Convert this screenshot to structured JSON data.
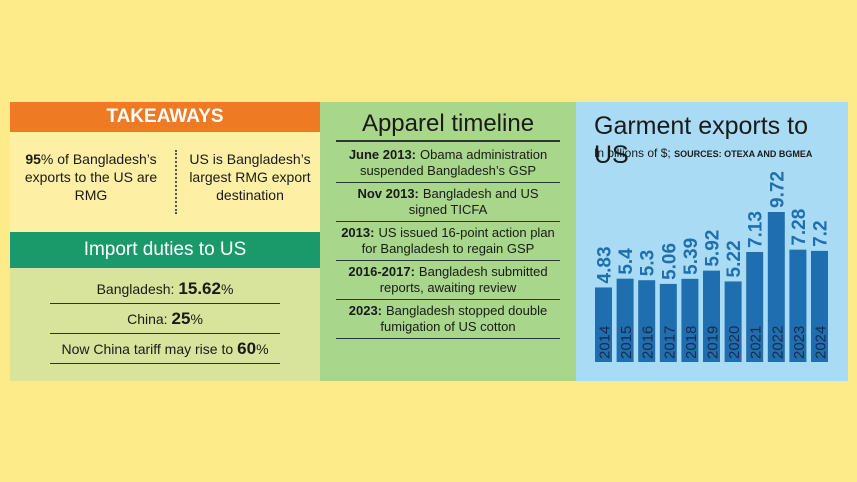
{
  "takeaways": {
    "title": "TAKEAWAYS",
    "items": [
      {
        "bold": "95",
        "text": "% of Bangladesh’s exports to the US are RMG"
      },
      {
        "text": "US is Bangladesh’s largest RMG export destination"
      }
    ]
  },
  "import_duties": {
    "title": "Import duties to US",
    "rows": [
      {
        "label": "Bangladesh:",
        "value": "15.62",
        "unit": "%"
      },
      {
        "label": "China:",
        "value": "25",
        "unit": "%"
      },
      {
        "label": "Now China tariff may rise to",
        "value": "60",
        "unit": "%"
      }
    ]
  },
  "timeline": {
    "title": "Apparel timeline",
    "items": [
      {
        "date": "June 2013:",
        "text": "Obama administration suspended Bangladesh’s GSP"
      },
      {
        "date": "Nov 2013:",
        "text": "Bangladesh and US signed TICFA"
      },
      {
        "date": "2013:",
        "text": "US issued 16-point action plan for Bangladesh to regain GSP"
      },
      {
        "date": "2016-2017:",
        "text": "Bangladesh submitted reports, awaiting review"
      },
      {
        "date": "2023:",
        "text": "Bangladesh stopped double fumigation of US cotton"
      }
    ]
  },
  "chart_data": {
    "type": "bar",
    "title": "Garment exports to US",
    "subtitle": "In billions of $;",
    "source": "SOURCES: OTEXA AND BGMEA",
    "categories": [
      "2014",
      "2015",
      "2016",
      "2017",
      "2018",
      "2019",
      "2020",
      "2021",
      "2022",
      "2023",
      "2024"
    ],
    "values": [
      4.83,
      5.4,
      5.3,
      5.06,
      5.39,
      5.92,
      5.22,
      7.13,
      9.72,
      7.28,
      7.2
    ],
    "color": "#1f6fb0",
    "label_color": "#1f6fb0",
    "tick_color": "#1b2a4a"
  }
}
